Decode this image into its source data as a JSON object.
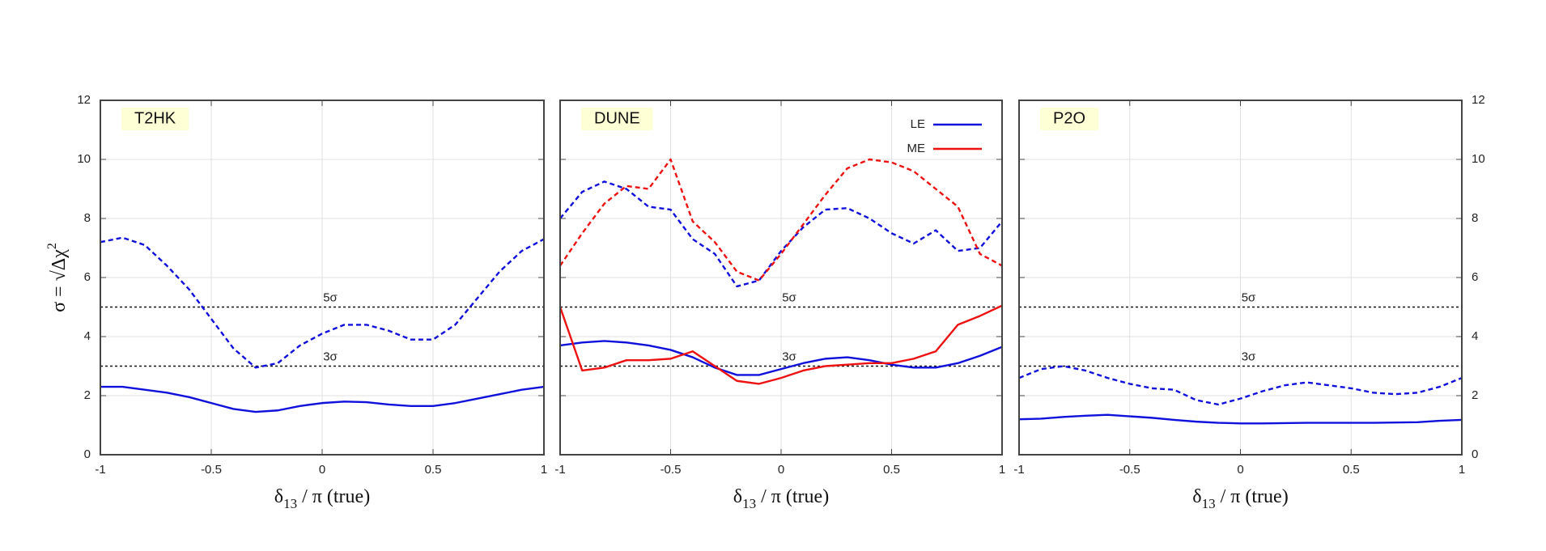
{
  "chart_data": [
    {
      "type": "line",
      "title": "T2HK",
      "title_background": "#ffffd6",
      "ytick_labels": "left",
      "ylabel": "σ = √Δχ2",
      "xlabel": "δ13 / π (true)",
      "x": [
        -1,
        -0.9,
        -0.8,
        -0.7,
        -0.6,
        -0.5,
        -0.4,
        -0.3,
        -0.2,
        -0.1,
        0,
        0.1,
        0.2,
        0.3,
        0.4,
        0.5,
        0.6,
        0.7,
        0.8,
        0.9,
        1
      ],
      "series": [
        {
          "color": "#1010dd",
          "dashed": true,
          "values": [
            7.2,
            7.35,
            7.1,
            6.4,
            5.6,
            4.6,
            3.6,
            2.95,
            3.1,
            3.7,
            4.1,
            4.4,
            4.4,
            4.2,
            3.9,
            3.9,
            4.4,
            5.3,
            6.2,
            6.9,
            7.3
          ]
        },
        {
          "color": "#1010dd",
          "dashed": false,
          "values": [
            2.3,
            2.3,
            2.2,
            2.1,
            1.95,
            1.75,
            1.55,
            1.45,
            1.5,
            1.65,
            1.75,
            1.8,
            1.78,
            1.7,
            1.65,
            1.65,
            1.75,
            1.9,
            2.05,
            2.2,
            2.3
          ]
        }
      ],
      "hlines": [
        {
          "value": 5,
          "label": "5σ"
        },
        {
          "value": 3,
          "label": "3σ"
        }
      ],
      "xlim": [
        -1,
        1
      ],
      "xticks": [
        -1,
        -0.5,
        0,
        0.5,
        1
      ],
      "ylim": [
        0,
        12
      ],
      "yticks": [
        0,
        2,
        4,
        6,
        8,
        10,
        12
      ],
      "grid": true
    },
    {
      "type": "line",
      "title": "DUNE",
      "title_background": "#ffffd6",
      "ytick_labels": "none",
      "legend": "upper right",
      "xlabel": "δ13 / π (true)",
      "x": [
        -1,
        -0.9,
        -0.8,
        -0.7,
        -0.6,
        -0.5,
        -0.4,
        -0.3,
        -0.2,
        -0.1,
        0,
        0.1,
        0.2,
        0.3,
        0.4,
        0.5,
        0.6,
        0.7,
        0.8,
        0.9,
        1
      ],
      "series": [
        {
          "color": "#1010dd",
          "dashed": true,
          "values": [
            8.0,
            8.9,
            9.25,
            9.0,
            8.4,
            8.3,
            7.3,
            6.8,
            5.7,
            5.9,
            6.9,
            7.7,
            8.3,
            8.35,
            8.0,
            7.5,
            7.15,
            7.6,
            6.9,
            7.0,
            7.9
          ]
        },
        {
          "color": "#ee1111",
          "dashed": true,
          "values": [
            6.4,
            7.5,
            8.5,
            9.1,
            9.0,
            10.0,
            7.9,
            7.2,
            6.2,
            5.9,
            6.8,
            7.8,
            8.8,
            9.7,
            10.0,
            9.9,
            9.6,
            9.0,
            8.4,
            6.8,
            6.4
          ]
        },
        {
          "name": "LE",
          "color": "#1010dd",
          "dashed": false,
          "values": [
            3.7,
            3.8,
            3.85,
            3.8,
            3.7,
            3.55,
            3.3,
            2.95,
            2.7,
            2.7,
            2.9,
            3.1,
            3.25,
            3.3,
            3.2,
            3.05,
            2.95,
            2.95,
            3.1,
            3.35,
            3.65
          ]
        },
        {
          "name": "ME",
          "color": "#ee1111",
          "dashed": false,
          "values": [
            5.0,
            2.85,
            2.95,
            3.2,
            3.2,
            3.25,
            3.5,
            3.0,
            2.5,
            2.4,
            2.6,
            2.85,
            3.0,
            3.05,
            3.1,
            3.1,
            3.25,
            3.5,
            4.4,
            4.7,
            5.05
          ]
        }
      ],
      "hlines": [
        {
          "value": 5,
          "label": "5σ"
        },
        {
          "value": 3,
          "label": "3σ"
        }
      ],
      "xlim": [
        -1,
        1
      ],
      "xticks": [
        -1,
        -0.5,
        0,
        0.5,
        1
      ],
      "ylim": [
        0,
        12
      ],
      "yticks": [
        0,
        2,
        4,
        6,
        8,
        10,
        12
      ],
      "grid": true
    },
    {
      "type": "line",
      "title": "P2O",
      "title_background": "#ffffd6",
      "ytick_labels": "right",
      "xlabel": "δ13 / π (true)",
      "x": [
        -1,
        -0.9,
        -0.8,
        -0.7,
        -0.6,
        -0.5,
        -0.4,
        -0.3,
        -0.2,
        -0.1,
        0,
        0.1,
        0.2,
        0.3,
        0.4,
        0.5,
        0.6,
        0.7,
        0.8,
        0.9,
        1
      ],
      "series": [
        {
          "color": "#1010dd",
          "dashed": true,
          "values": [
            2.6,
            2.9,
            3.0,
            2.85,
            2.6,
            2.4,
            2.25,
            2.2,
            1.85,
            1.7,
            1.9,
            2.15,
            2.35,
            2.45,
            2.35,
            2.25,
            2.1,
            2.05,
            2.1,
            2.3,
            2.6
          ]
        },
        {
          "color": "#1010dd",
          "dashed": false,
          "values": [
            1.2,
            1.22,
            1.28,
            1.32,
            1.35,
            1.3,
            1.25,
            1.18,
            1.12,
            1.08,
            1.06,
            1.06,
            1.07,
            1.08,
            1.08,
            1.08,
            1.08,
            1.09,
            1.1,
            1.15,
            1.18
          ]
        }
      ],
      "hlines": [
        {
          "value": 5,
          "label": "5σ"
        },
        {
          "value": 3,
          "label": "3σ"
        }
      ],
      "xlim": [
        -1,
        1
      ],
      "xticks": [
        -1,
        -0.5,
        0,
        0.5,
        1
      ],
      "ylim": [
        0,
        12
      ],
      "yticks": [
        0,
        2,
        4,
        6,
        8,
        10,
        12
      ],
      "grid": true
    }
  ]
}
